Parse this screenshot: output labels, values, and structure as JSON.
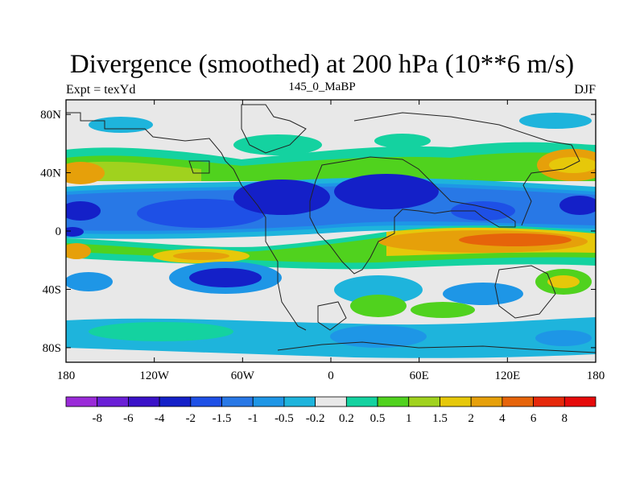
{
  "title": "Divergence (smoothed) at 200 hPa (10**6 m/s)",
  "subtitle_left": "Expt = texYd",
  "subtitle_center": "145_0_MaBP",
  "subtitle_right": "DJF",
  "y_ticks": [
    {
      "lat": 80,
      "label": "80N"
    },
    {
      "lat": 40,
      "label": "40N"
    },
    {
      "lat": 0,
      "label": "0"
    },
    {
      "lat": -40,
      "label": "40S"
    },
    {
      "lat": -80,
      "label": "80S"
    }
  ],
  "x_ticks": [
    {
      "lon": -180,
      "label": "180"
    },
    {
      "lon": -120,
      "label": "120W"
    },
    {
      "lon": -60,
      "label": "60W"
    },
    {
      "lon": 0,
      "label": "0"
    },
    {
      "lon": 60,
      "label": "60E"
    },
    {
      "lon": 120,
      "label": "120E"
    },
    {
      "lon": 180,
      "label": "180"
    }
  ],
  "colorbar": {
    "colors": [
      "#9a2bd8",
      "#6a1fd6",
      "#3a12c8",
      "#1420c8",
      "#1e50e6",
      "#2878e6",
      "#1e96e6",
      "#1eb4dc",
      "#e8e8e8",
      "#14d2a0",
      "#50d21e",
      "#a0d21e",
      "#e6c80a",
      "#e6a00a",
      "#e6640a",
      "#e6280a",
      "#e60a0a"
    ],
    "labels": [
      "-8",
      "-6",
      "-4",
      "-2",
      "-1.5",
      "-1",
      "-0.5",
      "-0.2",
      "0.2",
      "0.5",
      "1",
      "1.5",
      "2",
      "4",
      "6",
      "8"
    ]
  },
  "map_features": {
    "type": "filled-contour",
    "variable": "Divergence (smoothed)",
    "level": "200 hPa",
    "units": "10**6 m/s",
    "lon_range": [
      -180,
      180
    ],
    "lat_range": [
      -90,
      90
    ],
    "regions": [
      {
        "name": "tropical convergence band",
        "lon": [
          -180,
          180
        ],
        "lat": [
          -10,
          30
        ],
        "value_range": [
          -4,
          -0.5
        ],
        "color": "#1e50e6"
      },
      {
        "name": "eastern hemisphere tropical divergence",
        "lon": [
          60,
          160
        ],
        "lat": [
          -20,
          5
        ],
        "value_range": [
          2,
          6
        ],
        "color": "#e6a00a"
      },
      {
        "name": "subtropical north divergence",
        "lon": [
          150,
          180
        ],
        "lat": [
          30,
          50
        ],
        "value_range": [
          1.5,
          4
        ],
        "color": "#e6a00a"
      },
      {
        "name": "western Pacific divergence",
        "lon": [
          -180,
          -160
        ],
        "lat": [
          -30,
          50
        ],
        "value_range": [
          1,
          4
        ],
        "color": "#e6c80a"
      },
      {
        "name": "southern ocean mixed",
        "lon": [
          -180,
          180
        ],
        "lat": [
          -80,
          -30
        ],
        "value_range": [
          -2,
          2
        ],
        "color": "#2878e6"
      }
    ]
  }
}
